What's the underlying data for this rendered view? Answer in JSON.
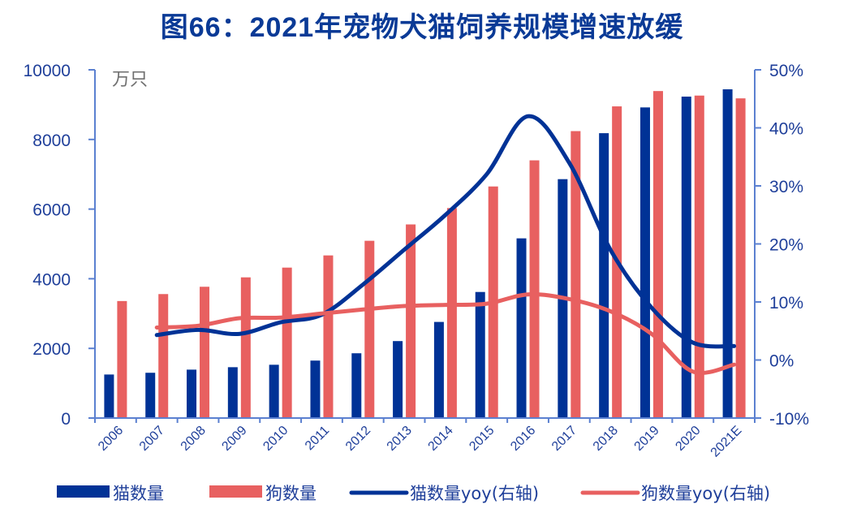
{
  "chart_data": {
    "type": "bar",
    "title": "图66：2021年宠物犬猫饲养规模增速放缓",
    "unit_label": "万只",
    "categories": [
      "2006",
      "2007",
      "2008",
      "2009",
      "2010",
      "2011",
      "2012",
      "2013",
      "2014",
      "2015",
      "2016",
      "2017",
      "2018",
      "2019",
      "2020",
      "2021E"
    ],
    "left_axis": {
      "ylim": [
        0,
        10000
      ],
      "ticks": [
        "0",
        "2000",
        "4000",
        "6000",
        "8000",
        "10000"
      ],
      "tick_values": [
        0,
        2000,
        4000,
        6000,
        8000,
        10000
      ]
    },
    "right_axis": {
      "ylim": [
        -10,
        50
      ],
      "ticks": [
        "-10%",
        "0%",
        "10%",
        "20%",
        "30%",
        "40%",
        "50%"
      ],
      "tick_values": [
        -10,
        0,
        10,
        20,
        30,
        40,
        50
      ]
    },
    "series": [
      {
        "name": "猫数量",
        "kind": "bar",
        "axis": "left",
        "color": "#003296",
        "values": [
          1250,
          1300,
          1390,
          1460,
          1530,
          1650,
          1860,
          2210,
          2760,
          3620,
          5160,
          6860,
          8180,
          8920,
          9230,
          9440
        ]
      },
      {
        "name": "狗数量",
        "kind": "bar",
        "axis": "left",
        "color": "#e86060",
        "values": [
          3360,
          3560,
          3770,
          4040,
          4320,
          4670,
          5090,
          5560,
          6030,
          6650,
          7400,
          8240,
          8950,
          9390,
          9260,
          9180
        ]
      },
      {
        "name": "猫数量yoy(右轴)",
        "kind": "line",
        "axis": "right",
        "color": "#003296",
        "values": [
          null,
          4.3,
          5.2,
          4.5,
          6.5,
          7.8,
          13,
          19,
          25,
          32,
          42,
          34,
          19,
          9,
          3,
          2.4
        ]
      },
      {
        "name": "狗数量yoy(右轴)",
        "kind": "line",
        "axis": "right",
        "color": "#e86060",
        "values": [
          null,
          5.6,
          5.9,
          7.2,
          7.3,
          8.0,
          8.7,
          9.3,
          9.5,
          9.7,
          11.3,
          10.5,
          8.4,
          4.5,
          -2.0,
          -0.8
        ]
      }
    ],
    "legend": {
      "position": "bottom"
    },
    "grid": false
  },
  "colors": {
    "title": "#0a3a96",
    "axis": "#5b80d0",
    "tick_text": "#1f3f9a"
  }
}
